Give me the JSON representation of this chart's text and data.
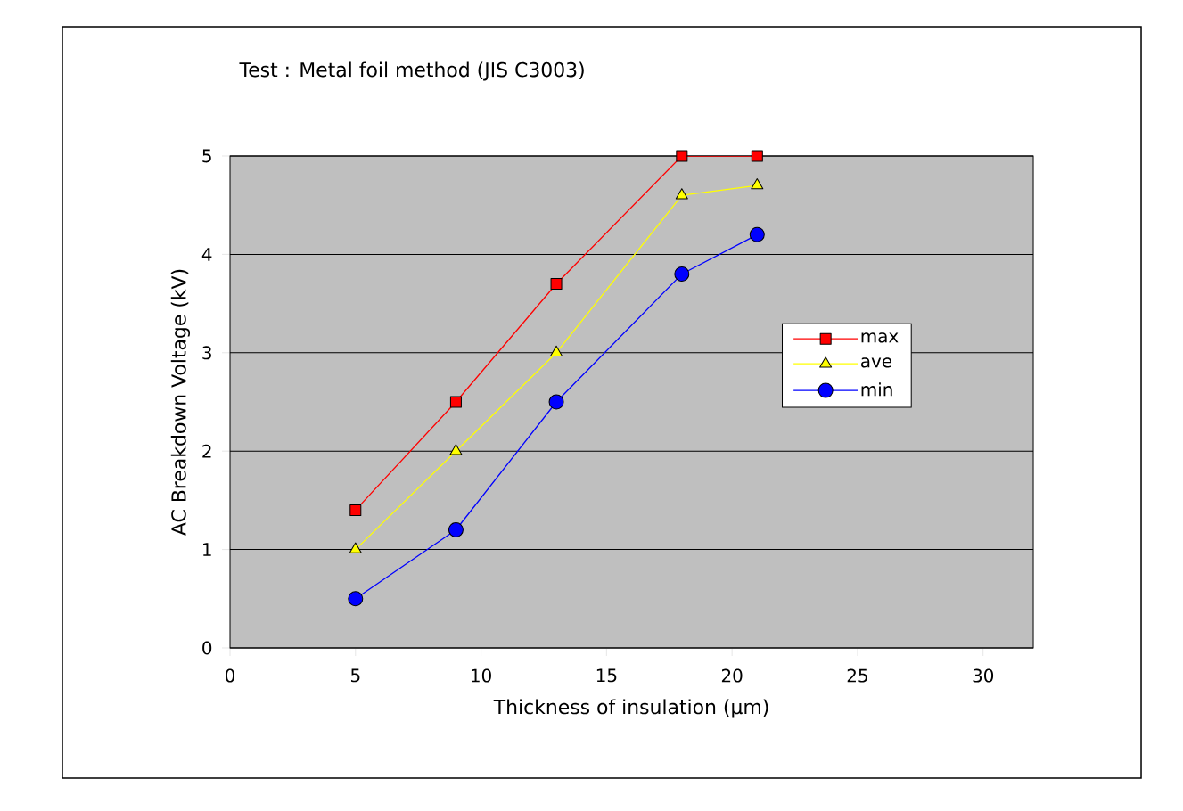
{
  "chart_data": {
    "type": "line",
    "title": "Test : Metal foil method (JIS C3003)",
    "xlabel": "Thickness of insulation (μm)",
    "ylabel": "AC  Breakdown Voltage (kV)",
    "x": [
      5,
      9,
      13,
      18,
      21
    ],
    "series": [
      {
        "name": "max",
        "color": "#ff0000",
        "marker": "square",
        "values": [
          1.4,
          2.5,
          3.7,
          5.0,
          5.0
        ]
      },
      {
        "name": "ave",
        "color": "#ffff00",
        "marker": "triangle",
        "values": [
          1.0,
          2.0,
          3.0,
          4.6,
          4.7
        ]
      },
      {
        "name": "min",
        "color": "#0000ff",
        "marker": "circle",
        "values": [
          0.5,
          1.2,
          2.5,
          3.8,
          4.2
        ]
      }
    ],
    "xlim": [
      0,
      32
    ],
    "ylim": [
      0,
      5
    ],
    "xticks": [
      0,
      5,
      10,
      15,
      20,
      25,
      30
    ],
    "yticks": [
      0,
      1,
      2,
      3,
      4,
      5
    ],
    "grid": "y",
    "legend": "right",
    "line_style": "solid"
  }
}
